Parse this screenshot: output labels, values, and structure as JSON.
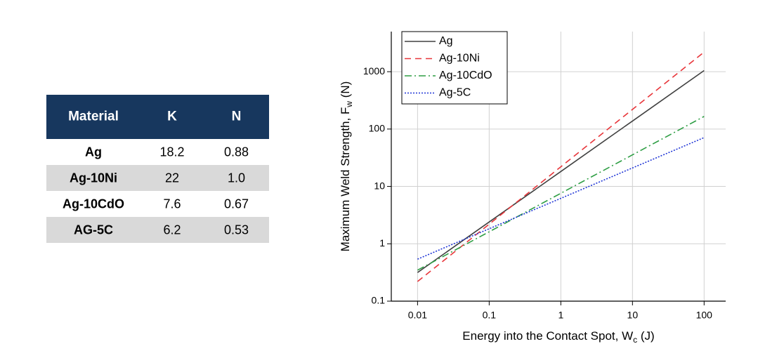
{
  "table": {
    "header": [
      "Material",
      "K",
      "N"
    ],
    "rows": [
      [
        "Ag",
        "18.2",
        "0.88"
      ],
      [
        "Ag-10Ni",
        "22",
        "1.0"
      ],
      [
        "Ag-10CdO",
        "7.6",
        "0.67"
      ],
      [
        "AG-5C",
        "6.2",
        "0.53"
      ]
    ]
  },
  "chart_data": {
    "type": "line",
    "xlabel": {
      "text": "Energy into the Contact Spot, W",
      "sub": "c",
      "suffix": " (J)"
    },
    "ylabel": {
      "text": "Maximum Weld Strength, F",
      "sub": "w",
      "suffix": " (N)"
    },
    "x": [
      0.01,
      0.1,
      1,
      10,
      100
    ],
    "series": [
      {
        "name": "Ag",
        "color": "#404040",
        "style": "solid",
        "values": [
          0.316,
          2.4,
          18.2,
          138,
          1047
        ]
      },
      {
        "name": "Ag-10Ni",
        "color": "#e8353a",
        "style": "dashed",
        "values": [
          0.22,
          2.2,
          22,
          220,
          2200
        ]
      },
      {
        "name": "Ag-10CdO",
        "color": "#2e9e44",
        "style": "dashdot",
        "values": [
          0.347,
          1.62,
          7.6,
          35.5,
          166
        ]
      },
      {
        "name": "Ag-5C",
        "color": "#1f35d6",
        "style": "dotted",
        "values": [
          0.54,
          1.83,
          6.2,
          21.0,
          71
        ]
      }
    ],
    "xscale": "log",
    "yscale": "log",
    "xlim": [
      0.0043,
      200
    ],
    "ylim": [
      0.1,
      5000
    ],
    "xticks": [
      0.01,
      0.1,
      1,
      10,
      100
    ],
    "yticks": [
      0.1,
      1,
      10,
      100,
      1000
    ],
    "grid": true,
    "legend": "upper left"
  }
}
